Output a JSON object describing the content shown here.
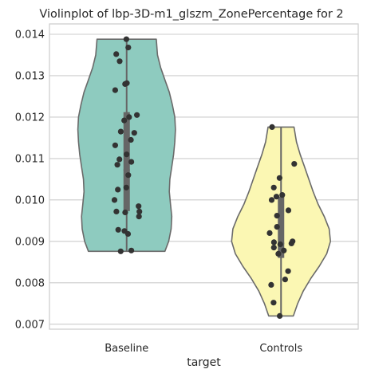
{
  "chart_data": {
    "type": "violin",
    "title": "Violinplot of lbp-3D-m1_glszm_ZonePercentage for 2",
    "xlabel": "target",
    "ylabel": "",
    "ylim": [
      0.00688,
      0.01425
    ],
    "yticks": [
      0.007,
      0.008,
      0.009,
      0.01,
      0.011,
      0.012,
      0.013,
      0.014
    ],
    "ytick_labels": [
      "0.007",
      "0.008",
      "0.009",
      "0.010",
      "0.011",
      "0.012",
      "0.013",
      "0.014"
    ],
    "categories": [
      "Baseline",
      "Controls"
    ],
    "grid": "horizontal",
    "colors": {
      "Baseline": "#8ecbbf",
      "Controls": "#fbf7b3",
      "outline": "#6a6a6a",
      "box": "#666666",
      "points": "#333333",
      "grid": "#cccccc"
    },
    "violins": [
      {
        "category": "Baseline",
        "min": 0.00876,
        "max": 0.01388,
        "q1": 0.00973,
        "median": 0.01072,
        "q3": 0.01212,
        "whisker_low": 0.00876,
        "whisker_high": 0.01388,
        "density": [
          [
            0.00876,
            0.62
          ],
          [
            0.009,
            0.68
          ],
          [
            0.0093,
            0.72
          ],
          [
            0.0096,
            0.73
          ],
          [
            0.0099,
            0.71
          ],
          [
            0.0102,
            0.69
          ],
          [
            0.0105,
            0.7
          ],
          [
            0.0108,
            0.73
          ],
          [
            0.0111,
            0.76
          ],
          [
            0.0114,
            0.78
          ],
          [
            0.0117,
            0.79
          ],
          [
            0.012,
            0.78
          ],
          [
            0.0123,
            0.74
          ],
          [
            0.0126,
            0.69
          ],
          [
            0.0129,
            0.62
          ],
          [
            0.0132,
            0.55
          ],
          [
            0.0135,
            0.5
          ],
          [
            0.01388,
            0.48
          ]
        ],
        "points": [
          0.01388,
          0.01368,
          0.01352,
          0.01335,
          0.0128,
          0.01282,
          0.01265,
          0.01205,
          0.012,
          0.01192,
          0.01165,
          0.01162,
          0.01145,
          0.01132,
          0.0111,
          0.01098,
          0.01092,
          0.01085,
          0.0106,
          0.0103,
          0.01025,
          0.01,
          0.00985,
          0.00972,
          0.00972,
          0.0097,
          0.0096,
          0.00928,
          0.00925,
          0.00918,
          0.00878,
          0.00876
        ]
      },
      {
        "category": "Controls",
        "min": 0.0072,
        "max": 0.01176,
        "q1": 0.0086,
        "median": 0.00895,
        "q3": 0.01008,
        "whisker_low": 0.0072,
        "whisker_high": 0.01176,
        "density": [
          [
            0.0072,
            0.2
          ],
          [
            0.0075,
            0.27
          ],
          [
            0.0078,
            0.36
          ],
          [
            0.0081,
            0.48
          ],
          [
            0.0084,
            0.62
          ],
          [
            0.0087,
            0.74
          ],
          [
            0.009,
            0.8
          ],
          [
            0.0093,
            0.78
          ],
          [
            0.0096,
            0.7
          ],
          [
            0.0099,
            0.6
          ],
          [
            0.0102,
            0.52
          ],
          [
            0.0105,
            0.45
          ],
          [
            0.0108,
            0.38
          ],
          [
            0.0111,
            0.31
          ],
          [
            0.0114,
            0.25
          ],
          [
            0.01176,
            0.21
          ]
        ],
        "points": [
          0.01176,
          0.01087,
          0.01053,
          0.0103,
          0.01012,
          0.01008,
          0.01,
          0.00975,
          0.00962,
          0.00935,
          0.0092,
          0.009,
          0.00898,
          0.00895,
          0.00893,
          0.00885,
          0.00878,
          0.0087,
          0.00828,
          0.00808,
          0.00795,
          0.00752,
          0.0072
        ]
      }
    ]
  }
}
